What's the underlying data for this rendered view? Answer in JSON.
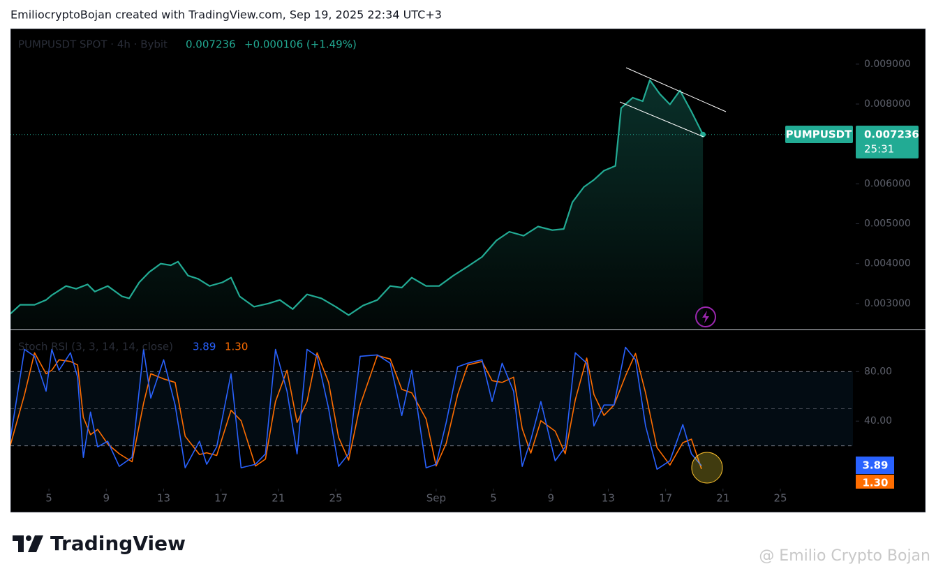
{
  "header": {
    "credit": "EmiliocryptoBojan created with TradingView.com, Sep 19, 2025 22:34 UTC+3"
  },
  "chart_data": [
    {
      "type": "line",
      "symbol": "PUMPUSDT SPOT · 4h · Bybit",
      "last_price": 0.007236,
      "change": "+0.000106 (+1.49%)",
      "price_tag": "PUMPUSDT",
      "countdown": "25:31",
      "color": "#22ab94",
      "x": [
        2.3,
        3.0,
        4.0,
        4.8,
        5.2,
        6.2,
        6.9,
        7.7,
        8.2,
        9.1,
        10.1,
        10.6,
        11.3,
        12.0,
        12.8,
        13.5,
        14.0,
        14.7,
        15.4,
        16.2,
        17.1,
        17.7,
        18.3,
        19.3,
        20.3,
        21.1,
        22.0,
        23.0,
        24.0,
        25.0,
        25.9,
        26.9,
        27.9,
        28.8,
        29.6,
        30.3,
        31.3,
        32.2,
        33.2,
        34.2,
        35.2,
        36.2,
        37.1,
        38.1,
        39.1,
        40.1,
        40.9,
        41.5,
        42.3,
        43.0,
        43.7,
        44.5,
        44.9,
        45.7,
        46.4,
        46.9,
        47.6,
        48.3,
        49.0,
        49.8,
        50.6
      ],
      "values": [
        0.00274,
        0.00297,
        0.00297,
        0.00309,
        0.00321,
        0.00344,
        0.00337,
        0.00348,
        0.0033,
        0.00344,
        0.00318,
        0.00313,
        0.00353,
        0.00379,
        0.004,
        0.00396,
        0.00405,
        0.0037,
        0.00362,
        0.00344,
        0.00353,
        0.00365,
        0.00318,
        0.00292,
        0.003,
        0.00309,
        0.00286,
        0.00323,
        0.00313,
        0.00292,
        0.00271,
        0.00295,
        0.00309,
        0.00344,
        0.0034,
        0.00365,
        0.00344,
        0.00344,
        0.0037,
        0.00393,
        0.00417,
        0.00458,
        0.0048,
        0.0047,
        0.00493,
        0.00484,
        0.00487,
        0.00554,
        0.00592,
        0.0061,
        0.00633,
        0.00645,
        0.0079,
        0.00816,
        0.00807,
        0.0086,
        0.00825,
        0.00799,
        0.00834,
        0.00781,
        0.007236
      ],
      "xlim": [
        2.32,
        61.06
      ],
      "xticks": [
        5,
        9,
        13,
        17,
        21,
        25,
        {
          "value": 32,
          "label": "Sep"
        },
        {
          "value": 36,
          "label": "5"
        },
        {
          "value": 40,
          "label": "9"
        },
        {
          "value": 44,
          "label": "13"
        },
        {
          "value": 48,
          "label": "17"
        },
        {
          "value": 52,
          "label": "21"
        },
        {
          "value": 56,
          "label": "25"
        }
      ],
      "ylim": [
        0.00235,
        0.00989
      ],
      "yticks": [
        {
          "value": 0.003,
          "label": "0.003000"
        },
        {
          "value": 0.004,
          "label": "0.004000"
        },
        {
          "value": 0.005,
          "label": "0.005000"
        },
        {
          "value": 0.006,
          "label": "0.006000"
        },
        {
          "value": 0.008,
          "label": "0.008000"
        },
        {
          "value": 0.009,
          "label": "0.009000"
        }
      ]
    },
    {
      "type": "line",
      "title": "Stoch RSI (3, 3, 14, 14, close)",
      "x": [
        2.3,
        3.3,
        4.0,
        4.8,
        5.2,
        5.7,
        6.5,
        7.0,
        7.4,
        7.9,
        8.4,
        9.1,
        9.9,
        10.8,
        11.6,
        12.1,
        13.0,
        13.8,
        14.5,
        15.5,
        16.0,
        16.7,
        17.7,
        18.4,
        19.4,
        20.1,
        20.8,
        21.6,
        22.3,
        23.0,
        23.7,
        24.5,
        25.2,
        25.9,
        26.7,
        27.9,
        28.8,
        29.6,
        30.3,
        31.3,
        32.0,
        32.7,
        33.5,
        34.2,
        35.2,
        35.9,
        36.6,
        37.4,
        38.0,
        38.6,
        39.3,
        40.3,
        41.0,
        41.7,
        42.5,
        43.0,
        43.7,
        44.4,
        45.2,
        45.9,
        46.6,
        47.4,
        48.3,
        49.2,
        49.8,
        50.5
      ],
      "series": [
        {
          "name": "K",
          "color": "#2962ff",
          "value_label": "3.89",
          "values": [
            24.8,
            98.0,
            92.4,
            64.2,
            98.0,
            81.1,
            95.2,
            75.5,
            10.7,
            47.3,
            19.2,
            23.7,
            3.4,
            10.7,
            98.0,
            58.6,
            89.6,
            53.0,
            2.3,
            23.7,
            5.1,
            19.2,
            78.3,
            2.3,
            5.1,
            13.5,
            98.0,
            64.2,
            13.5,
            98.0,
            92.4,
            50.1,
            3.4,
            13.5,
            92.4,
            93.5,
            86.8,
            44.5,
            81.1,
            2.3,
            5.1,
            38.9,
            83.9,
            86.8,
            89.6,
            55.8,
            86.8,
            64.2,
            3.4,
            24.8,
            55.8,
            7.9,
            19.2,
            95.2,
            86.8,
            36.1,
            53.0,
            53.0,
            99.7,
            89.6,
            36.1,
            1.1,
            7.9,
            37.2,
            13.5,
            3.89
          ]
        },
        {
          "name": "D",
          "color": "#ff6d00",
          "value_label": "1.30",
          "values": [
            20.0,
            61.4,
            95.2,
            78.3,
            81.1,
            89.6,
            88.2,
            85.4,
            43.1,
            29.0,
            33.3,
            21.5,
            13.6,
            7.1,
            54.4,
            78.3,
            74.1,
            71.3,
            27.7,
            13.0,
            14.4,
            12.2,
            48.8,
            40.3,
            3.7,
            9.3,
            55.8,
            81.1,
            38.9,
            55.8,
            95.2,
            71.3,
            26.8,
            8.5,
            53.0,
            93.0,
            90.2,
            65.7,
            62.8,
            41.7,
            3.7,
            22.0,
            61.4,
            85.4,
            88.2,
            72.7,
            71.3,
            75.5,
            33.8,
            14.1,
            40.3,
            31.9,
            13.6,
            57.2,
            91.0,
            61.5,
            44.6,
            53.0,
            76.4,
            94.7,
            62.9,
            18.6,
            4.5,
            22.6,
            25.4,
            1.3
          ]
        }
      ],
      "xlim": [
        2.32,
        61.06
      ],
      "ylim": [
        -14.6,
        113.5
      ],
      "yticks": [
        {
          "value": 80,
          "label": "80.00"
        },
        {
          "value": 40,
          "label": "40.00"
        }
      ],
      "band": [
        20,
        80
      ],
      "midline": 50
    }
  ],
  "footer": {
    "brand": "TradingView",
    "watermark": "@ Emilio Crypto Bojan"
  }
}
